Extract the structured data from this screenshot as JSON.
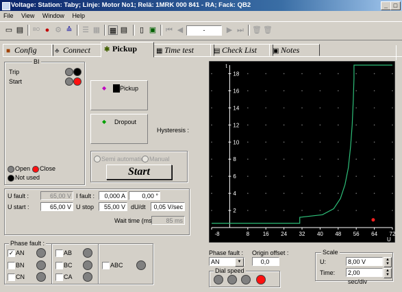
{
  "window": {
    "title": "Voltage:   Station: Taby;   Linje: Motor No1;   Relä: 1MRK 000 841 - RA;   Fack: QB2"
  },
  "menu": [
    "File",
    "View",
    "Window",
    "Help"
  ],
  "toolbar": {
    "position_value": "-"
  },
  "tabs": [
    {
      "label": "Config",
      "icon": "config-icon"
    },
    {
      "label": "Connect",
      "icon": "connect-icon"
    },
    {
      "label": "Pickup",
      "icon": "pickup-icon",
      "selected": true
    },
    {
      "label": "Time test",
      "icon": "timetest-icon"
    },
    {
      "label": "Check List",
      "icon": "checklist-icon"
    },
    {
      "label": "Notes",
      "icon": "notes-icon"
    }
  ],
  "bi": {
    "caption": "BI",
    "rows": [
      {
        "label": "Trip",
        "lamps": [
          "grey",
          "black"
        ]
      },
      {
        "label": "Start",
        "lamps": [
          "grey",
          "red"
        ]
      }
    ],
    "legend": {
      "open": "Open",
      "close": "Close",
      "not_used": "Not used"
    }
  },
  "indicators": {
    "pickup": "Pickup",
    "dropout": "Dropout",
    "hysteresis_label": "Hysteresis :"
  },
  "mode": {
    "semi_automatic": "Semi automatic",
    "manual": "Manual",
    "start_button": "Start"
  },
  "params": {
    "u_fault_label": "U fault :",
    "u_fault_value": "65,00 V",
    "i_fault_label": "I fault :",
    "i_fault_value": "0,000 A",
    "angle_value": "0,00 °",
    "u_start_label": "U start :",
    "u_start_value": "65,00 V",
    "u_stop_label": "U stop",
    "u_stop_value": "55,00 V",
    "du_dt_label": "dU/dt",
    "du_dt_value": "0,05 V/sec",
    "wait_time_label": "Wait time (ms):",
    "wait_time_value": "85 ms"
  },
  "phase_fault_group": {
    "caption": "Phase fault :",
    "items": [
      {
        "label": "AN",
        "checked": true
      },
      {
        "label": "BN",
        "checked": false
      },
      {
        "label": "CN",
        "checked": false
      },
      {
        "label": "AB",
        "checked": false
      },
      {
        "label": "BC",
        "checked": false
      },
      {
        "label": "CA",
        "checked": false
      },
      {
        "label": "ABC",
        "checked": false
      }
    ]
  },
  "chart_data": {
    "type": "line",
    "background": "#000000",
    "line_color": "#2ec07a",
    "xlabel": "U",
    "ylabel": "t",
    "xlim": [
      -8,
      72
    ],
    "ylim": [
      0,
      19
    ],
    "x_ticks": [
      "-8",
      "8",
      "16",
      "24",
      "32",
      "40",
      "48",
      "56",
      "64",
      "72"
    ],
    "y_ticks": [
      "2",
      "4",
      "6",
      "8",
      "10",
      "12",
      "14",
      "16",
      "18"
    ],
    "grid": "dotted",
    "series": [
      {
        "x": [
          -8,
          31,
          31,
          41,
          46,
          49,
          51,
          52.5,
          53.5,
          54.2,
          54.7,
          55,
          55,
          56,
          72
        ],
        "y": [
          0.5,
          0.5,
          1.2,
          1.5,
          2.2,
          3.4,
          5,
          7,
          9.5,
          12,
          15,
          17.5,
          19,
          19,
          19
        ]
      }
    ],
    "marker": {
      "x": 63.5,
      "y": 0.9,
      "color": "#ff2020"
    }
  },
  "phase_fault_select": {
    "label": "Phase fault :",
    "value": "AN"
  },
  "origin_offset": {
    "label": "Origin offset :",
    "value": "0,0"
  },
  "dial_speed": {
    "caption": "Dial speed",
    "lamps": [
      "grey",
      "grey",
      "grey",
      "red"
    ]
  },
  "scale": {
    "caption": "Scale",
    "u_label": "U:",
    "u_value": "8,00 V",
    "time_label": "Time:",
    "time_value": "2,00 sec/div"
  }
}
